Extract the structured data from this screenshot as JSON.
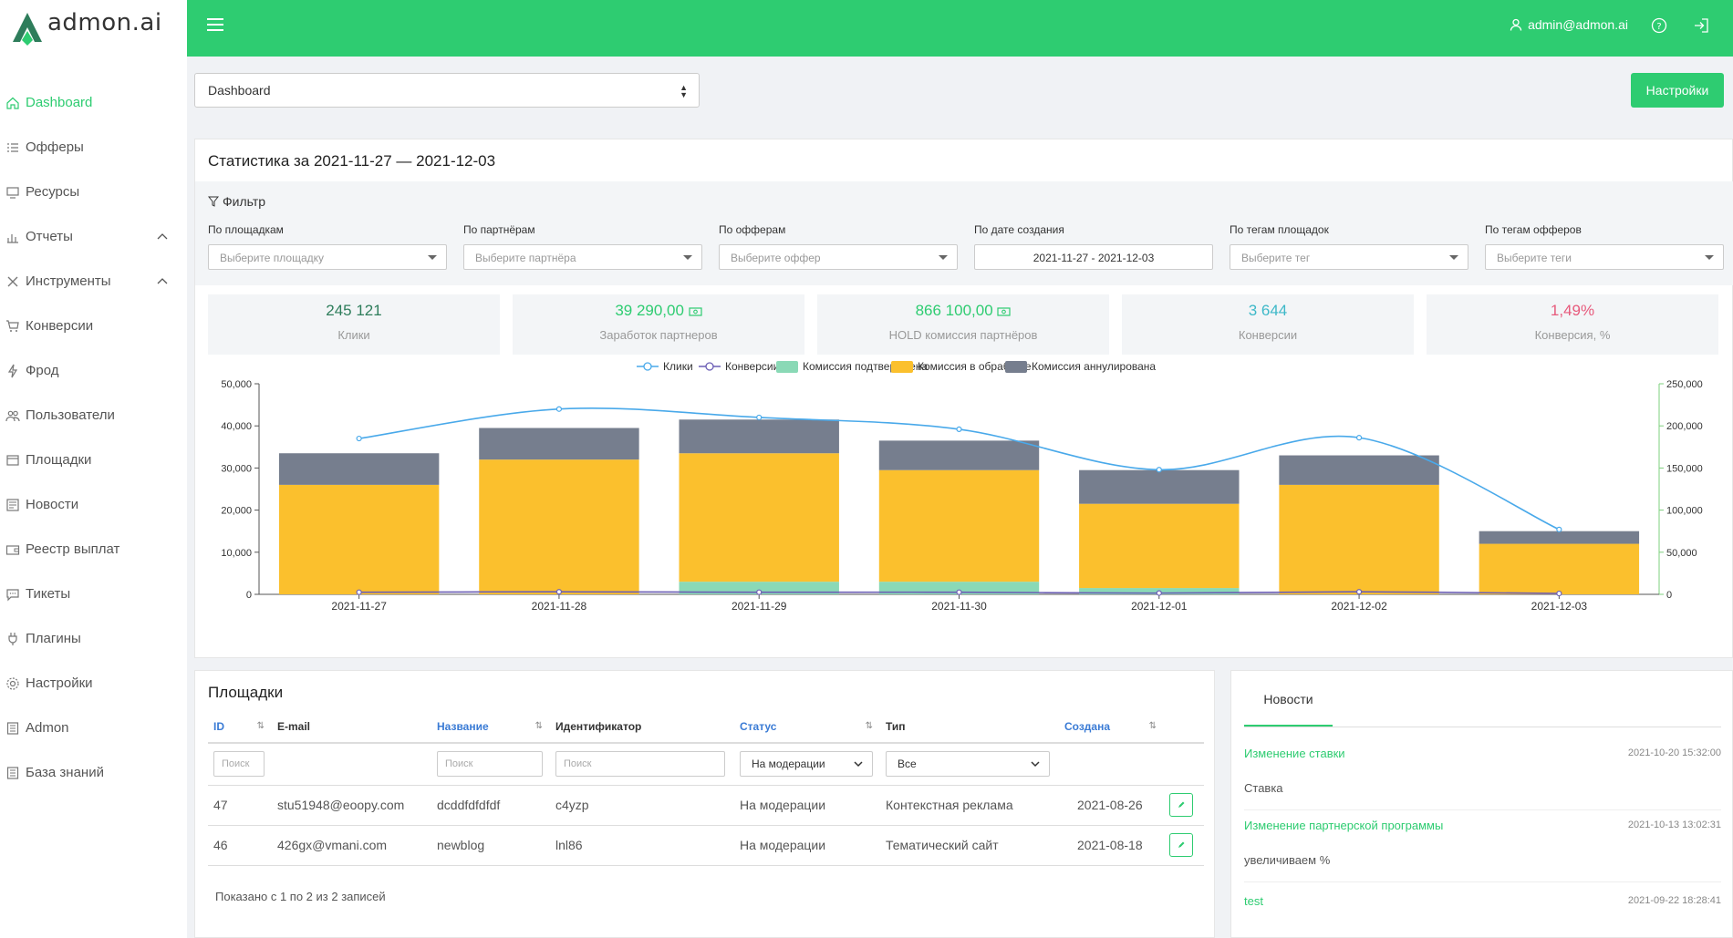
{
  "brand": {
    "name": "admon.ai"
  },
  "nav": [
    {
      "label": "Dashboard",
      "icon": "home-icon",
      "active": true
    },
    {
      "label": "Офферы",
      "icon": "list-icon"
    },
    {
      "label": "Ресурсы",
      "icon": "monitor-icon"
    },
    {
      "label": "Отчеты",
      "icon": "bar-chart-icon",
      "expand": true
    },
    {
      "label": "Инструменты",
      "icon": "tools-icon",
      "expand": true
    },
    {
      "label": "Конверсии",
      "icon": "cart-icon"
    },
    {
      "label": "Фрод",
      "icon": "lightning-icon"
    },
    {
      "label": "Пользователи",
      "icon": "users-icon"
    },
    {
      "label": "Площадки",
      "icon": "window-icon"
    },
    {
      "label": "Новости",
      "icon": "newspaper-icon"
    },
    {
      "label": "Реестр выплат",
      "icon": "wallet-icon"
    },
    {
      "label": "Тикеты",
      "icon": "chat-icon"
    },
    {
      "label": "Плагины",
      "icon": "plug-icon"
    },
    {
      "label": "Настройки",
      "icon": "gear-icon"
    },
    {
      "label": "Admon",
      "icon": "book-icon"
    },
    {
      "label": "База знаний",
      "icon": "book-icon"
    }
  ],
  "topbar": {
    "user": "admin@admon.ai"
  },
  "dashboard_select": "Dashboard",
  "settings_button": "Настройки",
  "stats": {
    "title": "Статистика за 2021-11-27 — 2021-12-03",
    "filter_label": "Фильтр",
    "filters": [
      {
        "label": "По площадкам",
        "placeholder": "Выберите площадку"
      },
      {
        "label": "По партнёрам",
        "placeholder": "Выберите партнёра"
      },
      {
        "label": "По офферам",
        "placeholder": "Выберите оффер"
      },
      {
        "label": "По дате создания",
        "value": "2021-11-27 - 2021-12-03"
      },
      {
        "label": "По тегам площадок",
        "placeholder": "Выберите тег"
      },
      {
        "label": "По тегам офферов",
        "placeholder": "Выберите теги"
      }
    ],
    "kpis": [
      {
        "value": "245 121",
        "label": "Клики",
        "color": "#2e7d5b"
      },
      {
        "value": "39 290,00",
        "label": "Заработок партнеров",
        "color": "#2ecc71",
        "money": true
      },
      {
        "value": "866 100,00",
        "label": "HOLD комиссия партнёров",
        "color": "#2ecc71",
        "money": true
      },
      {
        "value": "3 644",
        "label": "Конверсии",
        "color": "#3db8c8"
      },
      {
        "value": "1,49%",
        "label": "Конверсия, %",
        "color": "#e75a7c"
      }
    ]
  },
  "chart_data": {
    "type": "bar",
    "categories": [
      "2021-11-27",
      "2021-11-28",
      "2021-11-29",
      "2021-11-30",
      "2021-12-01",
      "2021-12-02",
      "2021-12-03"
    ],
    "legend": [
      "Клики",
      "Конверсии",
      "Комиссия подтверждена",
      "Комиссия в обработке",
      "Комиссия аннулирована"
    ],
    "series": [
      {
        "name": "Комиссия подтверждена",
        "type": "bar",
        "stack": true,
        "color": "#8ad9b6",
        "values": [
          0,
          0,
          3000,
          3000,
          1500,
          0,
          0
        ]
      },
      {
        "name": "Комиссия в обработке",
        "type": "bar",
        "stack": true,
        "color": "#fbc02d",
        "values": [
          26000,
          32000,
          30500,
          26500,
          20000,
          26000,
          12000
        ]
      },
      {
        "name": "Комиссия аннулирована",
        "type": "bar",
        "stack": true,
        "color": "#767e8e",
        "values": [
          7500,
          7500,
          8000,
          7000,
          8000,
          7000,
          3000
        ]
      },
      {
        "name": "Клики",
        "type": "line",
        "axis": "right",
        "color": "#49a9ea",
        "values": [
          185000,
          220000,
          210000,
          196000,
          148000,
          186000,
          77000
        ]
      },
      {
        "name": "Конверсии",
        "type": "line",
        "axis": "left",
        "color": "#6c5fb5",
        "values": [
          500,
          600,
          500,
          500,
          300,
          600,
          200
        ]
      }
    ],
    "y_left": {
      "ylim": [
        0,
        50000
      ],
      "ticks": [
        "0",
        "10,000",
        "20,000",
        "30,000",
        "40,000",
        "50,000"
      ]
    },
    "y_right": {
      "ylim": [
        0,
        250000
      ],
      "ticks": [
        "0",
        "50,000",
        "100,000",
        "150,000",
        "200,000",
        "250,000"
      ]
    }
  },
  "sites": {
    "title": "Площадки",
    "columns": [
      {
        "label": "ID",
        "sortable": true,
        "blue": true
      },
      {
        "label": "E-mail"
      },
      {
        "label": "Название",
        "sortable": true,
        "blue": true
      },
      {
        "label": "Идентификатор"
      },
      {
        "label": "Статус",
        "sortable": true,
        "blue": true
      },
      {
        "label": "Тип"
      },
      {
        "label": "Создана",
        "sortable": true,
        "blue": true
      },
      {
        "label": ""
      }
    ],
    "filters": {
      "id": "Поиск",
      "name": "Поиск",
      "ident": "Поиск",
      "status": "На модерации",
      "type": "Все"
    },
    "rows": [
      {
        "id": "47",
        "email": "stu51948@eoopy.com",
        "name": "dcddfdfdfdf",
        "ident": "c4yzp",
        "status": "На модерации",
        "type": "Контекстная реклама",
        "created": "2021-08-26"
      },
      {
        "id": "46",
        "email": "426gx@vmani.com",
        "name": "newblog",
        "ident": "lnl86",
        "status": "На модерации",
        "type": "Тематический сайт",
        "created": "2021-08-18"
      }
    ],
    "shown": "Показано с 1 по 2 из 2 записей"
  },
  "news": {
    "tab": "Новости",
    "items": [
      {
        "title": "Изменение ставки",
        "date": "2021-10-20 15:32:00",
        "body": "Ставка"
      },
      {
        "title": "Изменение партнерской программы",
        "date": "2021-10-13 13:02:31",
        "body": "увеличиваем %"
      },
      {
        "title": "test",
        "date": "2021-09-22 18:28:41",
        "body": ""
      }
    ]
  }
}
